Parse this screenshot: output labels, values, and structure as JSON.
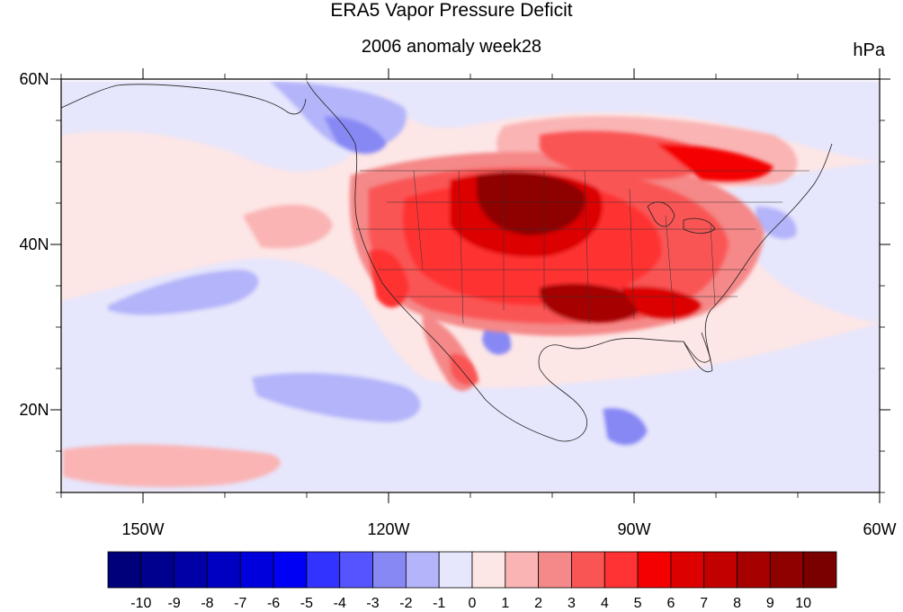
{
  "title": "ERA5 Vapor Pressure Deficit",
  "subtitle": "2006 anomaly week28",
  "units": "hPa",
  "map": {
    "lon_range": [
      -160,
      -60
    ],
    "lat_range": [
      10,
      60
    ],
    "x_ticks": [
      {
        "lon": -150,
        "label": "150W"
      },
      {
        "lon": -120,
        "label": "120W"
      },
      {
        "lon": -90,
        "label": "90W"
      },
      {
        "lon": -60,
        "label": "60W"
      }
    ],
    "y_ticks": [
      {
        "lat": 60,
        "label": "60N"
      },
      {
        "lat": 40,
        "label": "40N"
      },
      {
        "lat": 20,
        "label": "20N"
      }
    ]
  },
  "colorbar": {
    "labels": [
      "-10",
      "-9",
      "-8",
      "-7",
      "-6",
      "-5",
      "-4",
      "-3",
      "-2",
      "-1",
      "0",
      "1",
      "2",
      "3",
      "4",
      "5",
      "6",
      "7",
      "8",
      "9",
      "10"
    ],
    "colors": [
      "#00007a",
      "#00008f",
      "#0000a6",
      "#0000c2",
      "#0000dc",
      "#0000f5",
      "#3333ff",
      "#5555ff",
      "#8888f5",
      "#b4b4fa",
      "#e6e6fc",
      "#fde6e6",
      "#fab4b4",
      "#f58888",
      "#fa5555",
      "#ff3333",
      "#f50000",
      "#dc0000",
      "#c20000",
      "#a60000",
      "#8f0000",
      "#7a0000"
    ]
  },
  "chart_data": {
    "type": "heatmap",
    "title": "ERA5 Vapor Pressure Deficit",
    "subtitle": "2006 anomaly week28",
    "units": "hPa",
    "x_axis": {
      "range": [
        -160,
        -60
      ],
      "tick_labels": [
        "150W",
        "120W",
        "90W",
        "60W"
      ]
    },
    "y_axis": {
      "range": [
        10,
        60
      ],
      "tick_labels": [
        "20N",
        "40N",
        "60N"
      ]
    },
    "colorbar_levels": [
      -10,
      -9,
      -8,
      -7,
      -6,
      -5,
      -4,
      -3,
      -2,
      -1,
      0,
      1,
      2,
      3,
      4,
      5,
      6,
      7,
      8,
      9,
      10
    ]
  }
}
